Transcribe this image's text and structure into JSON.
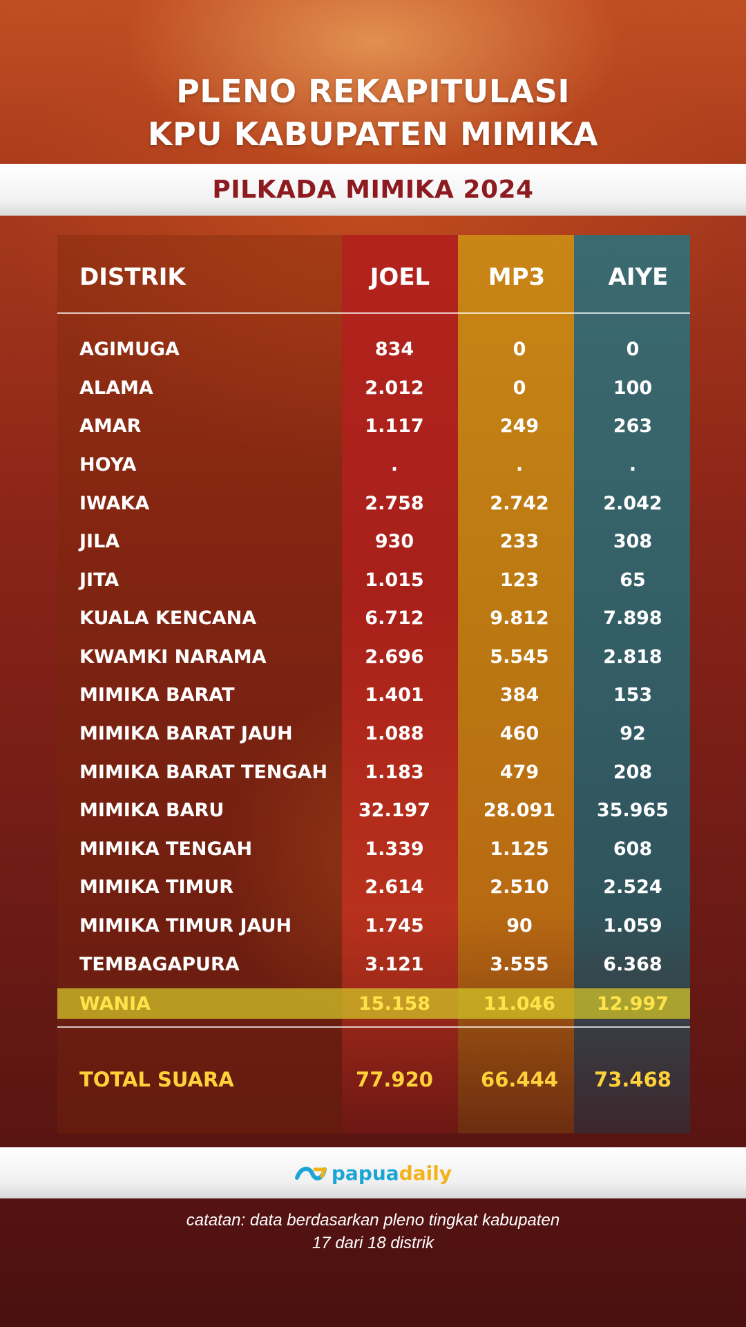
{
  "header": {
    "title_line1": "PLENO REKAPITULASI",
    "title_line2": "KPU KABUPATEN MIMIKA",
    "subtitle": "PILKADA MIMIKA 2024"
  },
  "table": {
    "columns": [
      "DISTRIK",
      "JOEL",
      "MP3",
      "AIYE"
    ],
    "column_colors": {
      "JOEL": "#b3231d",
      "MP3": "#c98516",
      "AIYE": "#3b6a70"
    },
    "rows": [
      {
        "distrik": "AGIMUGA",
        "joel": "834",
        "mp3": "0",
        "aiye": "0"
      },
      {
        "distrik": "ALAMA",
        "joel": "2.012",
        "mp3": "0",
        "aiye": "100"
      },
      {
        "distrik": "AMAR",
        "joel": "1.117",
        "mp3": "249",
        "aiye": "263"
      },
      {
        "distrik": "HOYA",
        "joel": ".",
        "mp3": ".",
        "aiye": "."
      },
      {
        "distrik": "IWAKA",
        "joel": "2.758",
        "mp3": "2.742",
        "aiye": "2.042"
      },
      {
        "distrik": "JILA",
        "joel": "930",
        "mp3": "233",
        "aiye": "308"
      },
      {
        "distrik": "JITA",
        "joel": "1.015",
        "mp3": "123",
        "aiye": "65"
      },
      {
        "distrik": "KUALA KENCANA",
        "joel": "6.712",
        "mp3": "9.812",
        "aiye": "7.898"
      },
      {
        "distrik": "KWAMKI NARAMA",
        "joel": "2.696",
        "mp3": "5.545",
        "aiye": "2.818"
      },
      {
        "distrik": "MIMIKA BARAT",
        "joel": "1.401",
        "mp3": "384",
        "aiye": "153"
      },
      {
        "distrik": "MIMIKA BARAT JAUH",
        "joel": "1.088",
        "mp3": "460",
        "aiye": "92"
      },
      {
        "distrik": "MIMIKA BARAT TENGAH",
        "joel": "1.183",
        "mp3": "479",
        "aiye": "208"
      },
      {
        "distrik": "MIMIKA BARU",
        "joel": "32.197",
        "mp3": "28.091",
        "aiye": "35.965"
      },
      {
        "distrik": "MIMIKA TENGAH",
        "joel": "1.339",
        "mp3": "1.125",
        "aiye": "608"
      },
      {
        "distrik": "MIMIKA TIMUR",
        "joel": "2.614",
        "mp3": "2.510",
        "aiye": "2.524"
      },
      {
        "distrik": "MIMIKA TIMUR JAUH",
        "joel": "1.745",
        "mp3": "90",
        "aiye": "1.059"
      },
      {
        "distrik": "TEMBAGAPURA",
        "joel": "3.121",
        "mp3": "3.555",
        "aiye": "6.368"
      },
      {
        "distrik": "WANIA",
        "joel": "15.158",
        "mp3": "11.046",
        "aiye": "12.997"
      }
    ],
    "total": {
      "label": "TOTAL SUARA",
      "joel": "77.920",
      "mp3": "66.444",
      "aiye": "73.468"
    }
  },
  "footer": {
    "logo_part1": "papua",
    "logo_part2": "daily",
    "note_line1": "catatan: data berdasarkan pleno tingkat kabupaten",
    "note_line2": "17 dari 18 distrik"
  }
}
